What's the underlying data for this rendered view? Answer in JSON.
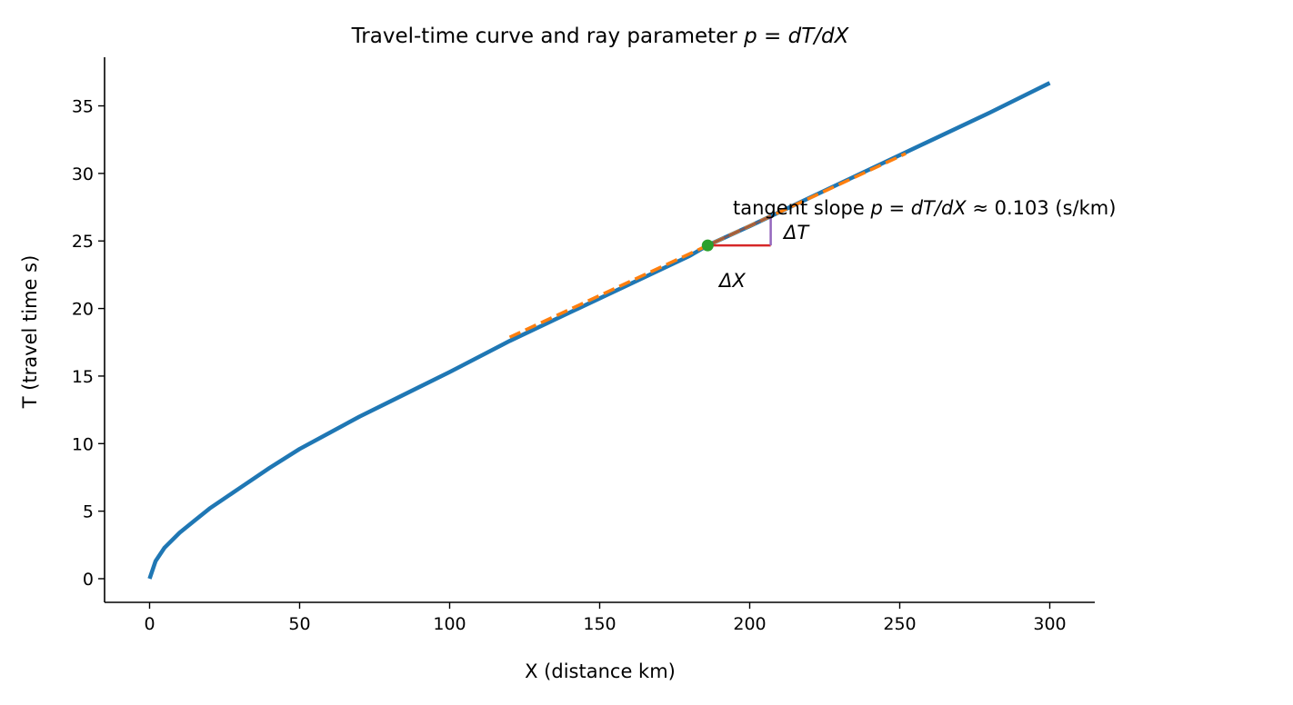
{
  "chart_data": {
    "type": "line",
    "title": "Travel-time curve and ray parameter",
    "title_math": "p = dT/dX",
    "xlabel": "X (distance km)",
    "ylabel": "T (travel time s)",
    "xlim": [
      -15,
      315
    ],
    "ylim": [
      -1.75,
      38.6
    ],
    "xticks": [
      0,
      50,
      100,
      150,
      200,
      250,
      300
    ],
    "yticks": [
      0,
      5,
      10,
      15,
      20,
      25,
      30,
      35
    ],
    "grid": false,
    "series": [
      {
        "style": "solid",
        "color": "#1f77b4",
        "x": [
          0,
          2,
          5,
          10,
          15,
          20,
          30,
          40,
          50,
          60,
          70,
          80,
          90,
          100,
          120,
          140,
          160,
          180,
          186,
          200,
          220,
          240,
          260,
          280,
          300
        ],
        "y": [
          0,
          1.3,
          2.3,
          3.4,
          4.3,
          5.2,
          6.7,
          8.2,
          9.6,
          10.8,
          12.0,
          13.1,
          14.2,
          15.3,
          17.6,
          19.7,
          21.8,
          23.9,
          24.67,
          26.1,
          28.2,
          30.3,
          32.4,
          34.5,
          36.7
        ]
      }
    ],
    "tangent": {
      "color": "#ff7f0e",
      "style": "dashed",
      "x0": 186,
      "y0": 24.67,
      "slope": 0.103,
      "x_range": [
        120,
        252
      ]
    },
    "point": {
      "x": 186,
      "y": 24.67,
      "color": "#2ca02c"
    },
    "triangle": {
      "dx": 21,
      "dx_color": "#d62728",
      "dt_color": "#9467bd",
      "hyp_color": "#8c564b"
    },
    "annotations": {
      "slope_text": "tangent slope ",
      "slope_math": "p = dT/dX",
      "slope_value": " ≈ 0.103 (s/km)",
      "delta_t": "ΔT",
      "delta_x": "ΔX"
    }
  }
}
